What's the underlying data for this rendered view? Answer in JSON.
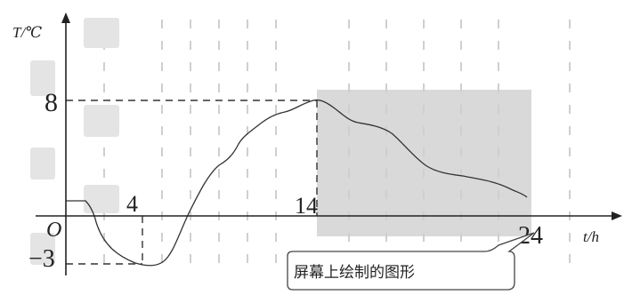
{
  "graph": {
    "y_axis_label": "T/℃",
    "x_axis_label": "t/h",
    "origin_label": "O",
    "tick_x_4": "4",
    "tick_x_14": "14",
    "tick_x_24": "24",
    "tick_y_8": "8",
    "tick_y_neg3": "−3",
    "callout_text": "屏幕上绘制的图形"
  },
  "colors": {
    "shaded_region": "#d9d9d9",
    "curve": "#333333",
    "axes": "#222222",
    "grid": "#cfcfcf"
  }
}
